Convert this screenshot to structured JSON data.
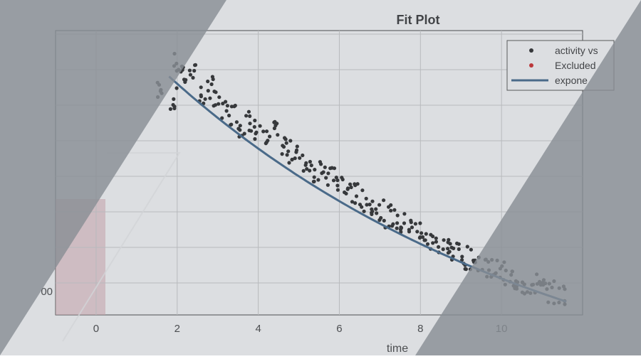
{
  "chart_data": {
    "type": "scatter",
    "title": "Fit Plot",
    "xlabel": "time",
    "ylabel": "",
    "x_ticks": [
      "0",
      "2",
      "4",
      "6",
      "8",
      "10"
    ],
    "y_tick_partial": "00",
    "xlim": [
      -1,
      12
    ],
    "grid": true,
    "legend": {
      "placement": "top-right",
      "entries": [
        "activity vs",
        "Excluded",
        "expone"
      ]
    },
    "series": [
      {
        "name": "activity vs",
        "kind": "points",
        "color": "#000000",
        "samples": [
          [
            1.6,
            0.89
          ],
          [
            1.9,
            0.87
          ],
          [
            2.0,
            0.96
          ],
          [
            2.2,
            0.93
          ],
          [
            2.4,
            0.95
          ],
          [
            2.6,
            0.88
          ],
          [
            2.8,
            0.9
          ],
          [
            3.0,
            0.86
          ],
          [
            3.2,
            0.84
          ],
          [
            3.4,
            0.83
          ],
          [
            3.6,
            0.8
          ],
          [
            3.8,
            0.81
          ],
          [
            4.0,
            0.79
          ],
          [
            4.2,
            0.76
          ],
          [
            4.4,
            0.78
          ],
          [
            4.6,
            0.75
          ],
          [
            4.8,
            0.73
          ],
          [
            5.0,
            0.72
          ],
          [
            5.2,
            0.7
          ],
          [
            5.4,
            0.68
          ],
          [
            5.6,
            0.69
          ],
          [
            5.8,
            0.66
          ],
          [
            6.0,
            0.65
          ],
          [
            6.2,
            0.63
          ],
          [
            6.4,
            0.62
          ],
          [
            6.6,
            0.6
          ],
          [
            6.8,
            0.59
          ],
          [
            7.0,
            0.58
          ],
          [
            7.2,
            0.56
          ],
          [
            7.4,
            0.55
          ],
          [
            7.6,
            0.54
          ],
          [
            7.8,
            0.53
          ],
          [
            8.0,
            0.52
          ],
          [
            8.2,
            0.5
          ],
          [
            8.4,
            0.49
          ],
          [
            8.6,
            0.48
          ],
          [
            8.8,
            0.47
          ],
          [
            9.0,
            0.46
          ],
          [
            9.2,
            0.45
          ],
          [
            9.4,
            0.44
          ],
          [
            9.6,
            0.43
          ],
          [
            9.8,
            0.42
          ],
          [
            10.0,
            0.41
          ],
          [
            10.2,
            0.4
          ],
          [
            10.4,
            0.39
          ],
          [
            10.6,
            0.38
          ],
          [
            10.8,
            0.38
          ],
          [
            11.0,
            0.37
          ],
          [
            11.2,
            0.36
          ],
          [
            11.5,
            0.35
          ]
        ]
      },
      {
        "name": "expone",
        "kind": "line",
        "color": "#1f4e79",
        "model": {
          "a": 1.12,
          "k": 0.104
        }
      }
    ],
    "excluded_region": {
      "x_from": -1,
      "x_to": 0.5,
      "color": "#d9a0a8"
    }
  },
  "colors": {
    "background": "#ffffff",
    "axes_background": "#ffffff",
    "grid": "#c8c8c8",
    "points": "#000000",
    "excluded": "#cc0000",
    "fit_line": "#1f4e79",
    "overlay": "#8a8f96"
  }
}
